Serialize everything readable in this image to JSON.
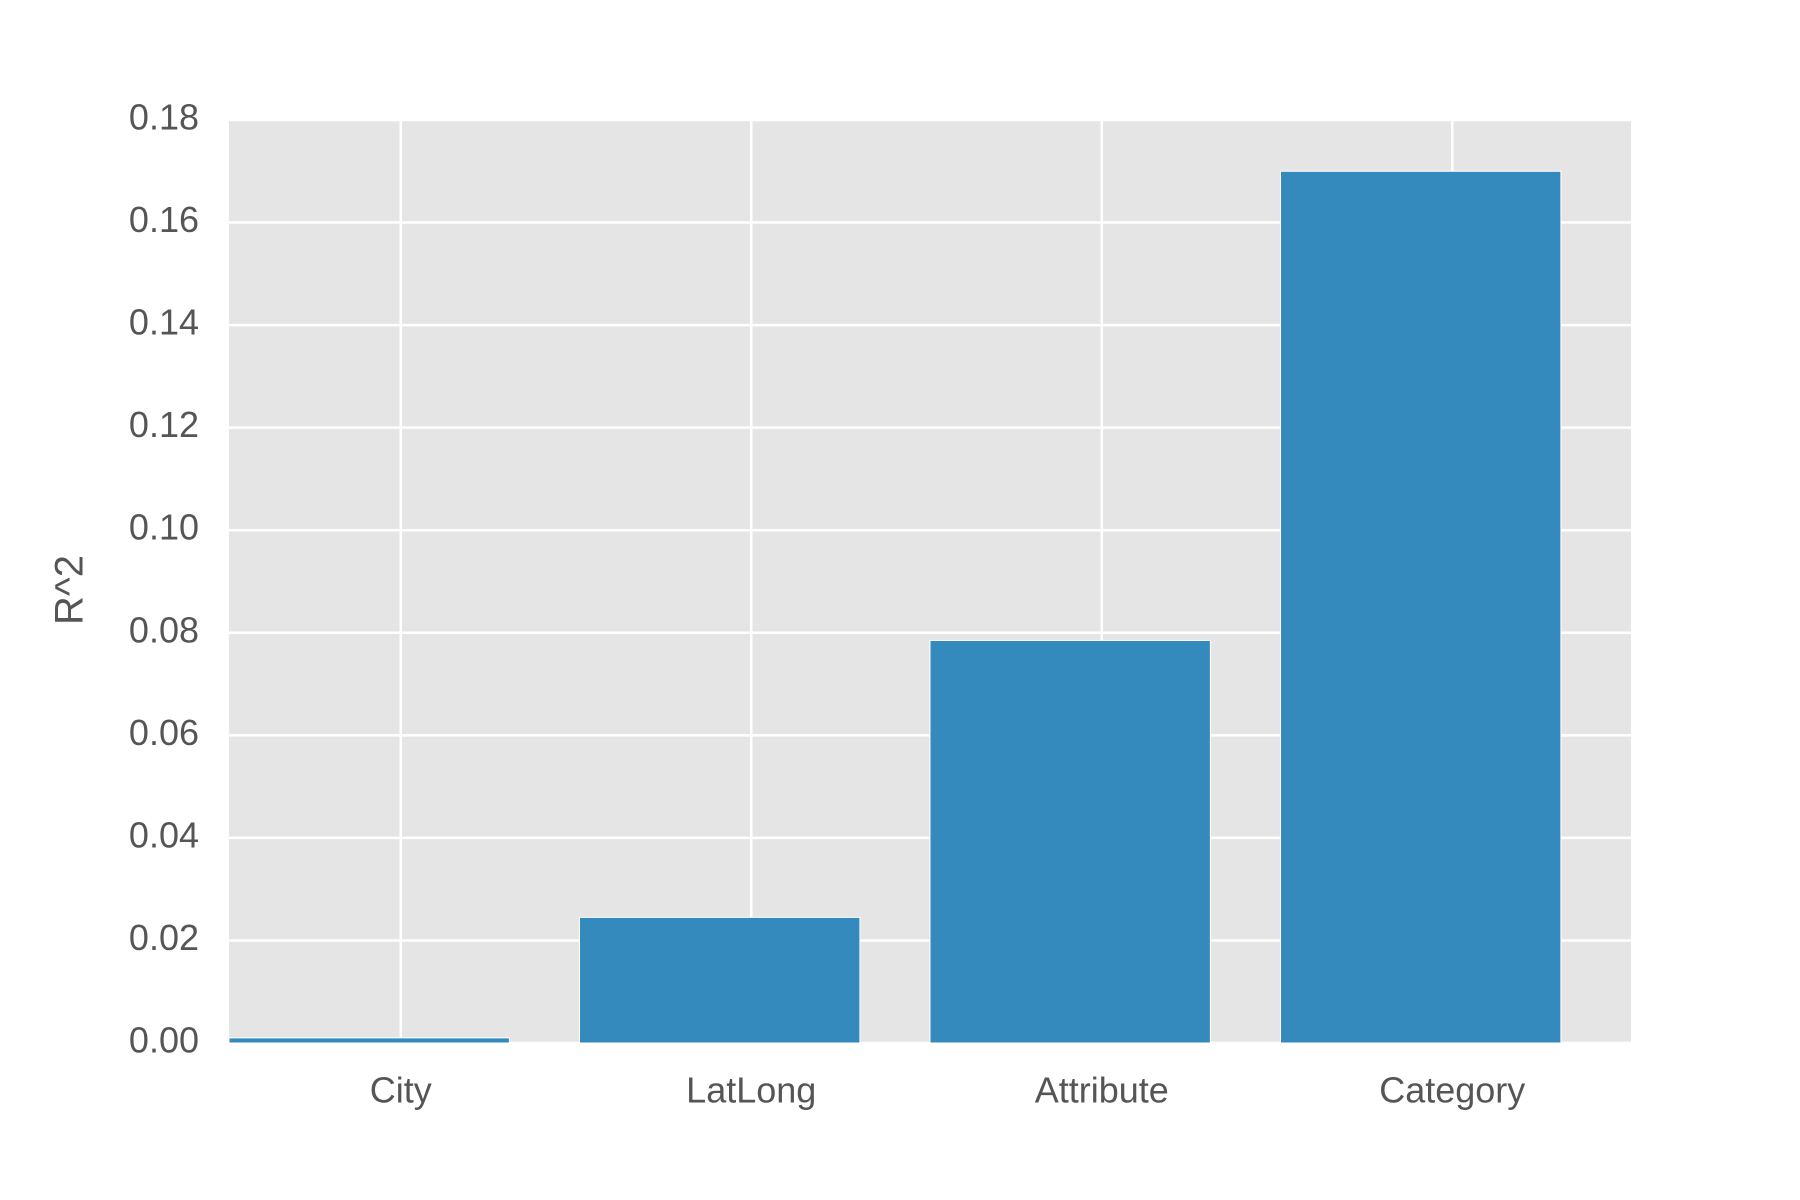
{
  "chart_data": {
    "type": "bar",
    "ylabel": "R^2",
    "categories": [
      "City",
      "LatLong",
      "Attribute",
      "Category"
    ],
    "values": [
      0.001,
      0.0245,
      0.0785,
      0.17
    ],
    "color": "#348abd",
    "ylim": [
      0,
      0.18
    ],
    "yticks": [
      {
        "value": 0,
        "label": "0.00"
      },
      0.02,
      0.04,
      0.06,
      0.08,
      {
        "value": 0.1,
        "label": "0.10"
      },
      0.12,
      0.14,
      0.16,
      0.18
    ],
    "grid": true
  }
}
